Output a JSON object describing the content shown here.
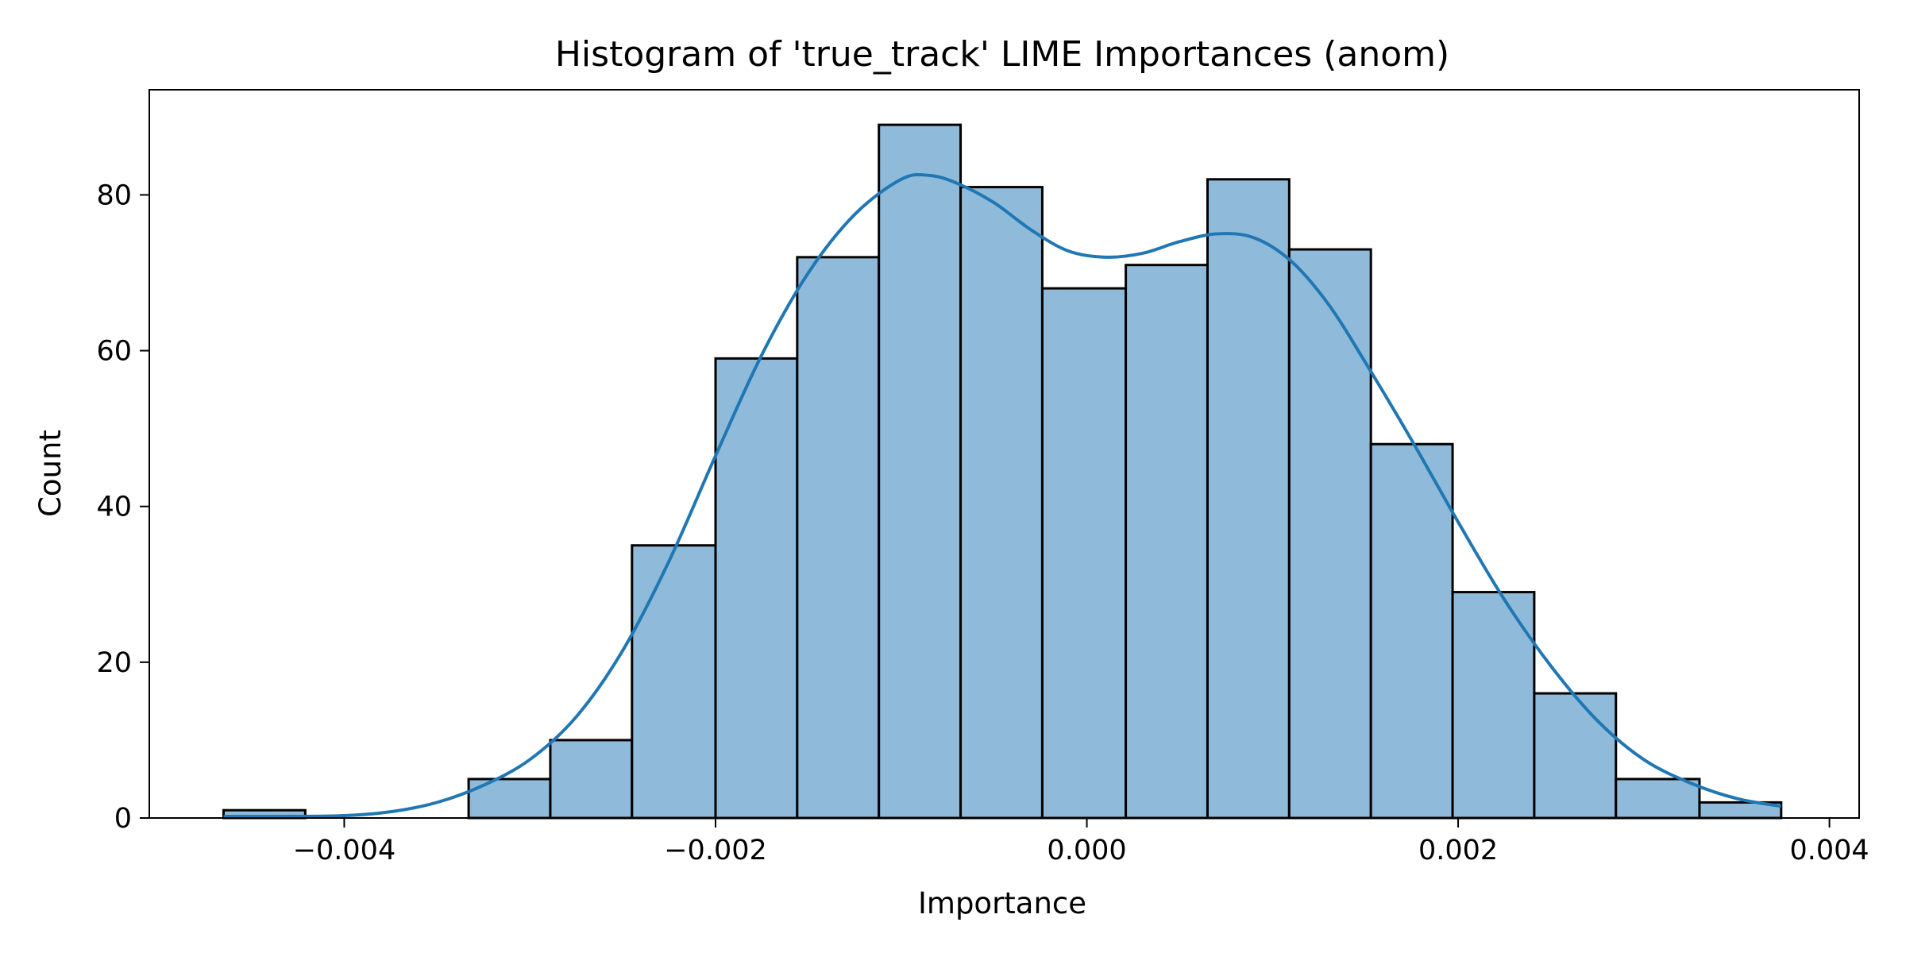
{
  "chart_data": {
    "type": "bar",
    "title": "Histogram of 'true_track' LIME Importances (anom)",
    "xlabel": "Importance",
    "ylabel": "Count",
    "xlim": [
      -0.00505,
      0.00416
    ],
    "ylim": [
      0,
      93.5
    ],
    "grid": false,
    "legend": "none",
    "x_ticks": [
      {
        "value": -0.004,
        "label": "−0.004"
      },
      {
        "value": -0.002,
        "label": "−0.002"
      },
      {
        "value": 0.0,
        "label": "0.000"
      },
      {
        "value": 0.002,
        "label": "0.002"
      },
      {
        "value": 0.004,
        "label": "0.004"
      }
    ],
    "y_ticks": [
      {
        "value": 0,
        "label": "0"
      },
      {
        "value": 20,
        "label": "20"
      },
      {
        "value": 40,
        "label": "40"
      },
      {
        "value": 60,
        "label": "60"
      },
      {
        "value": 80,
        "label": "80"
      }
    ],
    "bin_edges": [
      -0.00465,
      -0.00421,
      -0.00377,
      -0.00333,
      -0.00289,
      -0.00245,
      -0.002,
      -0.00156,
      -0.00112,
      -0.00068,
      -0.00024,
      0.00021,
      0.00065,
      0.00109,
      0.00153,
      0.00197,
      0.00241,
      0.00285,
      0.0033,
      0.00374
    ],
    "counts": [
      1,
      0,
      0,
      5,
      10,
      35,
      59,
      72,
      89,
      81,
      68,
      71,
      82,
      73,
      48,
      29,
      16,
      5,
      2
    ],
    "kde": {
      "x": [
        -0.00465,
        -0.0043,
        -0.004,
        -0.00375,
        -0.0035,
        -0.00325,
        -0.003,
        -0.00275,
        -0.0025,
        -0.00225,
        -0.002,
        -0.00175,
        -0.0015,
        -0.00125,
        -0.001,
        -0.00085,
        -0.0007,
        -0.0005,
        -0.0003,
        -0.0001,
        0.0001,
        0.0003,
        0.0005,
        0.0007,
        0.0009,
        0.0011,
        0.0013,
        0.0015,
        0.00175,
        0.002,
        0.00225,
        0.0025,
        0.00275,
        0.003,
        0.00325,
        0.0035,
        0.00374
      ],
      "y": [
        0.2,
        0.2,
        0.3,
        0.8,
        2.0,
        4.2,
        7.5,
        13.0,
        21.5,
        33.0,
        46.5,
        59.5,
        70.0,
        77.5,
        82.0,
        82.5,
        81.5,
        79.0,
        75.5,
        72.8,
        72.0,
        72.5,
        74.0,
        75.0,
        74.5,
        71.5,
        66.0,
        58.5,
        48.5,
        38.0,
        28.0,
        19.5,
        12.5,
        7.5,
        4.5,
        2.5,
        1.5
      ]
    },
    "bar_fill": "#8fbad9",
    "bar_edge": "#000000",
    "kde_color": "#1f77b4"
  }
}
